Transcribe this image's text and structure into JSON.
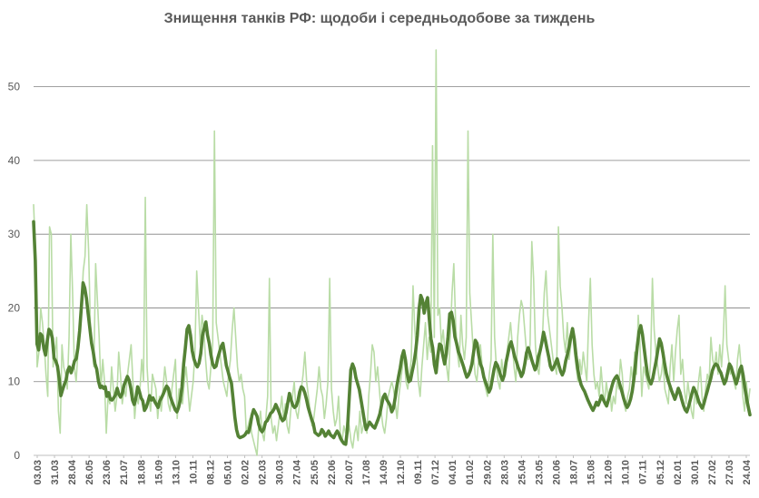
{
  "chart_data": {
    "type": "line",
    "title": "Знищення танків РФ: щодоби і середньодобове за тиждень",
    "ylim": [
      0,
      55
    ],
    "yticks": [
      0,
      10,
      20,
      30,
      40,
      50
    ],
    "grid": true,
    "legend": "none",
    "x_start_label": "03.03",
    "x_end_label": "24.04",
    "colors": {
      "daily": "#b9dca6",
      "weekly": "#548235",
      "grid": "#808080",
      "text": "#595959"
    },
    "xtick_labels": [
      "03.03",
      "31.03",
      "28.04",
      "26.05",
      "23.06",
      "21.07",
      "18.08",
      "15.09",
      "13.10",
      "10.11",
      "08.12",
      "05.01",
      "02.02",
      "02.03",
      "30.03",
      "27.04",
      "25.05",
      "22.06",
      "20.07",
      "17.08",
      "14.09",
      "12.10",
      "09.11",
      "07.12",
      "04.01",
      "01.02",
      "29.02",
      "28.03",
      "25.04",
      "23.05",
      "20.06",
      "18.07",
      "15.08",
      "12.09",
      "10.10",
      "07.11",
      "05.12",
      "02.01",
      "30.01",
      "27.02",
      "27.03",
      "24.04"
    ],
    "series": [
      {
        "name": "",
        "role": "daily",
        "values": [
          34,
          28,
          12,
          14,
          20,
          18,
          15,
          11,
          8,
          31,
          30,
          12,
          14,
          16,
          6,
          3,
          15,
          12,
          11,
          9,
          16,
          30,
          22,
          12,
          10,
          14,
          18,
          20,
          25,
          27,
          34,
          28,
          18,
          15,
          12,
          26,
          21,
          16,
          9,
          13,
          10,
          3,
          8,
          7,
          12,
          9,
          6,
          8,
          14,
          11,
          7,
          9,
          8,
          11,
          13,
          15,
          10,
          5,
          8,
          7,
          9,
          13,
          10,
          35,
          12,
          8,
          6,
          11,
          10,
          9,
          5,
          8,
          6,
          9,
          12,
          10,
          7,
          6,
          9,
          11,
          13,
          5,
          9,
          8,
          7,
          10,
          12,
          9,
          6,
          8,
          10,
          14,
          25,
          20,
          15,
          19,
          17,
          13,
          10,
          9,
          12,
          15,
          44,
          18,
          16,
          14,
          12,
          10,
          9,
          8,
          11,
          13,
          17,
          20,
          16,
          12,
          10,
          11,
          9,
          8,
          3,
          4,
          5,
          3,
          2,
          1,
          0,
          4,
          6,
          3,
          2,
          5,
          8,
          24,
          5,
          3,
          4,
          2,
          4,
          6,
          8,
          5,
          7,
          4,
          3,
          6,
          8,
          10,
          6,
          5,
          7,
          9,
          11,
          14,
          10,
          8,
          6,
          4,
          5,
          7,
          9,
          12,
          9,
          8,
          5,
          7,
          10,
          24,
          9,
          6,
          4,
          5,
          8,
          3,
          2,
          4,
          3,
          5,
          4,
          2,
          1,
          3,
          4,
          2,
          6,
          3,
          4,
          5,
          3,
          8,
          11,
          15,
          14,
          10,
          12,
          9,
          6,
          4,
          3,
          5,
          8,
          9,
          10,
          9,
          7,
          5,
          8,
          10,
          12,
          14,
          10,
          9,
          11,
          13,
          23,
          17,
          14,
          10,
          8,
          12,
          15,
          18,
          13,
          16,
          14,
          42,
          16,
          55,
          19,
          20,
          15,
          17,
          14,
          12,
          10,
          16,
          22,
          26,
          18,
          14,
          12,
          19,
          15,
          13,
          16,
          44,
          22,
          18,
          14,
          11,
          10,
          13,
          15,
          12,
          10,
          9,
          8,
          11,
          13,
          30,
          16,
          12,
          10,
          9,
          13,
          11,
          12,
          14,
          16,
          18,
          15,
          12,
          10,
          16,
          19,
          21,
          20,
          17,
          14,
          13,
          15,
          29,
          24,
          15,
          12,
          11,
          14,
          16,
          22,
          25,
          19,
          17,
          15,
          13,
          12,
          11,
          31,
          23,
          20,
          16,
          14,
          18,
          13,
          15,
          17,
          14,
          12,
          10,
          13,
          11,
          14,
          12,
          10,
          18,
          24,
          15,
          11,
          9,
          10,
          8,
          12,
          9,
          7,
          10,
          8,
          9,
          6,
          8,
          7,
          10,
          9,
          13,
          11,
          7,
          6,
          8,
          9,
          12,
          10,
          14,
          11,
          19,
          15,
          8,
          12,
          11,
          10,
          9,
          13,
          24,
          17,
          14,
          12,
          10,
          11,
          13,
          9,
          8,
          7,
          12,
          15,
          10,
          14,
          17,
          19,
          11,
          13,
          9,
          7,
          10,
          8,
          6,
          5,
          9,
          7,
          10,
          12,
          8,
          6,
          9,
          11,
          10,
          16,
          13,
          12,
          14,
          11,
          15,
          12,
          16,
          23,
          15,
          13,
          11,
          12,
          10,
          9,
          13,
          15,
          12,
          8,
          6,
          10,
          7,
          9
        ]
      },
      {
        "name": "",
        "role": "weekly",
        "values": [
          31.7,
          26.4,
          15.1,
          14.3,
          16.5,
          16.2,
          14.5,
          13.6,
          15.5,
          17.1,
          16.8,
          15.9,
          13.2,
          12.8,
          12.1,
          10.4,
          8.1,
          8.9,
          9.6,
          10.2,
          11.5,
          12.0,
          11.2,
          11.9,
          12.8,
          13.1,
          14.6,
          16.9,
          20.1,
          23.4,
          22.7,
          21.3,
          19.2,
          17.2,
          15.2,
          14.0,
          12.4,
          11.7,
          10.1,
          9.2,
          9.4,
          9.1,
          9.3,
          8.0,
          8.5,
          7.6,
          7.5,
          7.8,
          8.2,
          9.1,
          8.3,
          7.9,
          8.4,
          9.5,
          10.1,
          10.7,
          10.2,
          9.1,
          7.5,
          6.9,
          7.8,
          9.3,
          8.7,
          7.8,
          7.4,
          6.1,
          6.5,
          7.2,
          8.1,
          7.5,
          7.8,
          7.3,
          6.9,
          6.5,
          7.4,
          7.8,
          8.3,
          8.9,
          9.4,
          9.1,
          8.1,
          7.4,
          6.8,
          6.2,
          5.9,
          6.5,
          7.5,
          9.3,
          12.4,
          14.6,
          17.1,
          17.6,
          16.3,
          14.2,
          13.1,
          12.4,
          12.0,
          12.5,
          13.8,
          16.2,
          17.2,
          18.1,
          16.3,
          15.2,
          13.6,
          12.4,
          11.9,
          12.1,
          13.2,
          14.0,
          14.8,
          15.2,
          13.8,
          12.2,
          11.4,
          10.5,
          9.8,
          7.6,
          5.2,
          3.5,
          2.6,
          2.4,
          2.5,
          2.6,
          2.8,
          3.2,
          3.1,
          4.0,
          5.4,
          6.2,
          5.8,
          5.3,
          4.2,
          3.5,
          3.2,
          3.6,
          4.5,
          4.7,
          5.2,
          5.7,
          5.9,
          6.3,
          6.9,
          6.4,
          5.8,
          5.1,
          4.7,
          4.9,
          5.8,
          7.1,
          8.4,
          7.5,
          6.8,
          6.5,
          6.7,
          7.4,
          8.6,
          9.3,
          9.1,
          8.5,
          7.6,
          6.5,
          5.7,
          4.9,
          4.3,
          3.1,
          2.9,
          2.7,
          2.9,
          3.5,
          3.2,
          2.6,
          2.9,
          3.3,
          2.8,
          2.6,
          2.4,
          2.9,
          3.3,
          2.9,
          2.3,
          1.9,
          1.6,
          1.5,
          3.5,
          7.6,
          11.6,
          12.4,
          11.8,
          10.5,
          9.7,
          8.9,
          7.5,
          6.1,
          4.6,
          3.5,
          4.0,
          4.5,
          4.2,
          3.9,
          3.7,
          4.3,
          4.9,
          5.6,
          6.8,
          7.9,
          8.3,
          7.6,
          7.2,
          6.8,
          5.9,
          6.4,
          7.8,
          9.4,
          10.7,
          11.9,
          13.4,
          14.2,
          13.0,
          11.1,
          10.0,
          10.2,
          11.4,
          12.5,
          14.1,
          16.3,
          19.8,
          21.7,
          21.1,
          19.3,
          20.6,
          21.4,
          18.5,
          15.8,
          14.6,
          12.3,
          11.2,
          13.5,
          15.1,
          14.9,
          13.5,
          12.4,
          13.8,
          16.1,
          19.2,
          19.4,
          18.3,
          16.1,
          15.2,
          14.1,
          13.5,
          12.8,
          12.1,
          11.3,
          10.6,
          10.9,
          11.5,
          12.4,
          14.0,
          15.6,
          15.2,
          13.6,
          12.4,
          11.8,
          10.6,
          9.9,
          9.3,
          8.6,
          9.1,
          10.4,
          11.7,
          12.6,
          12.2,
          11.5,
          10.7,
          10.2,
          10.9,
          12.6,
          13.7,
          14.8,
          15.4,
          14.5,
          13.4,
          12.8,
          12.0,
          11.4,
          10.7,
          11.2,
          12.4,
          13.9,
          14.6,
          13.9,
          13.0,
          12.3,
          11.6,
          12.1,
          13.4,
          14.2,
          15.3,
          16.7,
          15.7,
          14.5,
          13.4,
          12.1,
          11.6,
          12.0,
          12.5,
          13.1,
          12.2,
          11.4,
          10.9,
          11.5,
          12.8,
          13.7,
          14.8,
          16.1,
          17.2,
          15.8,
          13.6,
          11.8,
          10.5,
          9.6,
          9.1,
          8.7,
          8.1,
          7.5,
          7.0,
          6.5,
          6.1,
          6.6,
          7.2,
          6.8,
          7.4,
          8.1,
          7.6,
          7.1,
          6.7,
          7.5,
          8.4,
          9.3,
          10.1,
          10.5,
          10.8,
          10.2,
          9.4,
          8.6,
          7.7,
          7.0,
          6.5,
          6.9,
          7.6,
          8.7,
          10.4,
          12.6,
          14.9,
          16.8,
          17.6,
          16.4,
          14.5,
          12.6,
          10.9,
          10.1,
          9.7,
          10.4,
          11.6,
          12.8,
          14.3,
          15.8,
          15.2,
          13.9,
          12.4,
          11.1,
          10.2,
          9.5,
          8.8,
          8.2,
          7.6,
          8.3,
          9.1,
          8.5,
          7.6,
          6.8,
          6.2,
          5.9,
          6.6,
          7.5,
          8.4,
          9.2,
          8.7,
          8.1,
          7.3,
          6.8,
          6.4,
          7.0,
          7.9,
          8.7,
          9.6,
          10.4,
          11.5,
          12.1,
          12.4,
          12.2,
          11.6,
          11.2,
          10.4,
          9.7,
          10.2,
          11.3,
          12.4,
          12.0,
          11.2,
          10.4,
          9.7,
          10.5,
          11.6,
          12.1,
          10.9,
          9.2,
          7.8,
          6.6,
          5.5
        ]
      }
    ]
  }
}
